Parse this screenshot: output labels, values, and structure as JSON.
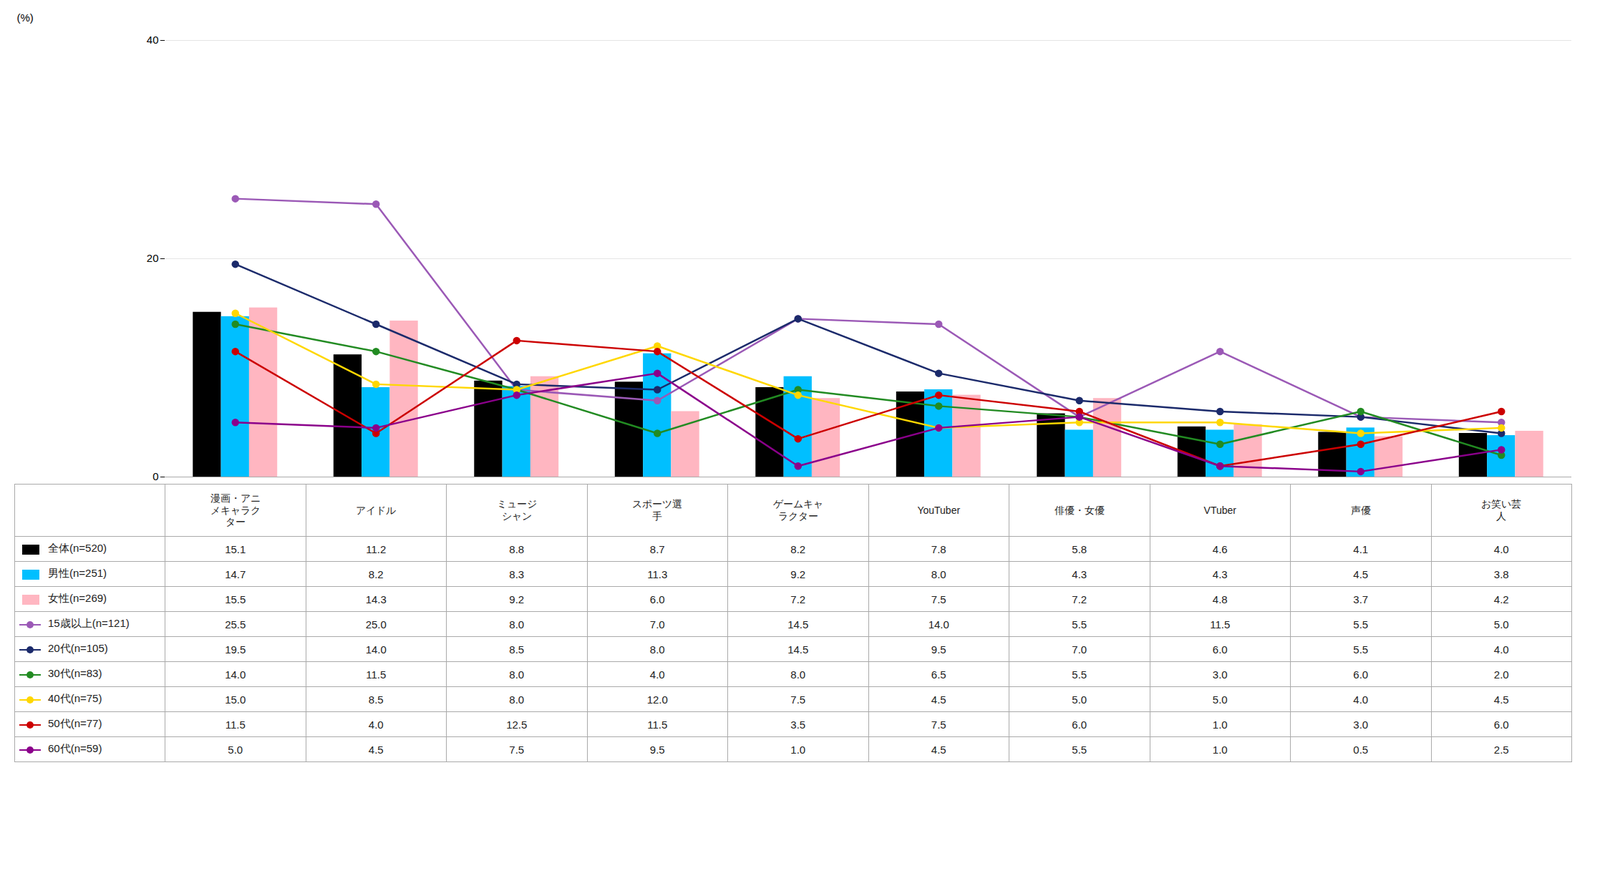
{
  "chart_data": {
    "type": "bar",
    "ylabel": "(%)",
    "categories": [
      "漫画・アニ\nメキャラク\nター",
      "アイドル",
      "ミュージ\nシャン",
      "スポーツ選\n手",
      "ゲームキャ\nラクター",
      "YouTuber",
      "俳優・女優",
      "VTuber",
      "声優",
      "お笑い芸\n人"
    ],
    "series": [
      {
        "name": "全体(n=520)",
        "type": "bar",
        "color": "#000000",
        "values": [
          15.1,
          11.2,
          8.8,
          8.7,
          8.2,
          7.8,
          5.8,
          4.6,
          4.1,
          4.0
        ],
        "value_labels": [
          "15.1",
          "11.2",
          "8.8",
          "8.7",
          "8.2",
          "7.8",
          "5.8",
          "4.6",
          "4.1",
          "4.0"
        ]
      },
      {
        "name": "男性(n=251)",
        "type": "bar",
        "color": "#00BFFF",
        "values": [
          14.7,
          8.2,
          8.3,
          11.3,
          9.2,
          8.0,
          4.3,
          4.3,
          4.5,
          3.8
        ],
        "value_labels": [
          "14.7",
          "8.2",
          "8.3",
          "11.3",
          "9.2",
          "8.0",
          "4.3",
          "4.3",
          "4.5",
          "3.8"
        ]
      },
      {
        "name": "女性(n=269)",
        "type": "bar",
        "color": "#FFB6C1",
        "values": [
          15.5,
          14.3,
          9.2,
          6.0,
          7.2,
          7.5,
          7.2,
          4.8,
          3.7,
          4.2
        ],
        "value_labels": [
          "15.5",
          "14.3",
          "9.2",
          "6.0",
          "7.2",
          "7.5",
          "7.2",
          "4.8",
          "3.7",
          "4.2"
        ]
      },
      {
        "name": "15歳以上(n=121)",
        "type": "line",
        "marker": "circle",
        "color": "#9B59B6",
        "values": [
          25.5,
          25.0,
          8.0,
          7.0,
          14.5,
          14.0,
          5.5,
          11.5,
          5.5,
          5.0
        ],
        "value_labels": [
          "25.5",
          "25.0",
          "8.0",
          "7.0",
          "14.5",
          "14.0",
          "5.5",
          "11.5",
          "5.5",
          "5.0"
        ]
      },
      {
        "name": "20代(n=105)",
        "type": "line",
        "marker": "circle",
        "color": "#1B2A6B",
        "values": [
          19.5,
          14.0,
          8.5,
          8.0,
          14.5,
          9.5,
          7.0,
          6.0,
          5.5,
          4.0
        ],
        "value_labels": [
          "19.5",
          "14.0",
          "8.5",
          "8.0",
          "14.5",
          "9.5",
          "7.0",
          "6.0",
          "5.5",
          "4.0"
        ]
      },
      {
        "name": "30代(n=83)",
        "type": "line",
        "marker": "circle",
        "color": "#228B22",
        "values": [
          14.0,
          11.5,
          8.0,
          4.0,
          8.0,
          6.5,
          5.5,
          3.0,
          6.0,
          2.0
        ],
        "value_labels": [
          "14.0",
          "11.5",
          "8.0",
          "4.0",
          "8.0",
          "6.5",
          "5.5",
          "3.0",
          "6.0",
          "2.0"
        ]
      },
      {
        "name": "40代(n=75)",
        "type": "line",
        "marker": "circle",
        "color": "#FFD700",
        "values": [
          15.0,
          8.5,
          8.0,
          12.0,
          7.5,
          4.5,
          5.0,
          5.0,
          4.0,
          4.5
        ],
        "value_labels": [
          "15.0",
          "8.5",
          "8.0",
          "12.0",
          "7.5",
          "4.5",
          "5.0",
          "5.0",
          "4.0",
          "4.5"
        ]
      },
      {
        "name": "50代(n=77)",
        "type": "line",
        "marker": "circle",
        "color": "#CC0000",
        "values": [
          11.5,
          4.0,
          12.5,
          11.5,
          3.5,
          7.5,
          6.0,
          1.0,
          3.0,
          6.0
        ],
        "value_labels": [
          "11.5",
          "4.0",
          "12.5",
          "11.5",
          "3.5",
          "7.5",
          "6.0",
          "1.0",
          "3.0",
          "6.0"
        ]
      },
      {
        "name": "60代(n=59)",
        "type": "line",
        "marker": "circle",
        "color": "#8B008B",
        "values": [
          5.0,
          4.5,
          7.5,
          9.5,
          1.0,
          4.5,
          5.5,
          1.0,
          0.5,
          2.5
        ],
        "value_labels": [
          "5.0",
          "4.5",
          "7.5",
          "9.5",
          "1.0",
          "4.5",
          "5.5",
          "1.0",
          "0.5",
          "2.5"
        ]
      }
    ],
    "ylim": [
      0,
      40
    ],
    "yticks": [
      0,
      20,
      40
    ],
    "grid": true
  }
}
